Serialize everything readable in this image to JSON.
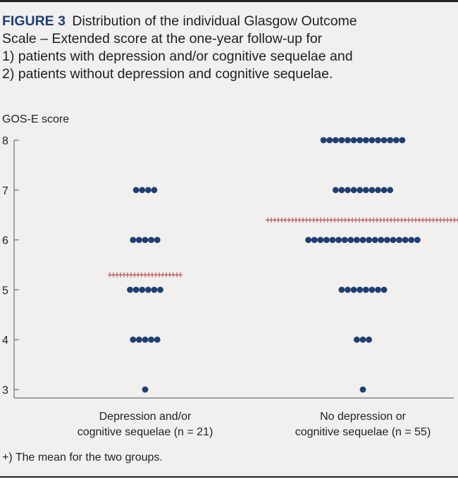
{
  "figure": {
    "label": "FIGURE 3",
    "caption_lines": [
      "Distribution of the individual Glasgow Outcome",
      "Scale – Extended score at the one-year follow-up for",
      "1) patients with depression and/or cognitive sequelae and",
      "2) patients without depression and cognitive sequelae."
    ],
    "footnote": "+) The mean for the two groups."
  },
  "colors": {
    "dot": "#1f3f72",
    "mean": "#b5474c",
    "axis": "#555555"
  },
  "chart_data": {
    "type": "scatter",
    "subtype": "dot-strip-plot",
    "ylabel": "GOS-E score",
    "ylim": [
      3,
      8
    ],
    "yticks": [
      3,
      4,
      5,
      6,
      7,
      8
    ],
    "categories": [
      "Depression and/or cognitive sequelae (n = 21)",
      "No depression or cognitive sequelae (n = 55)"
    ],
    "category_label_lines": [
      [
        "Depression and/or",
        "cognitive sequelae (n = 21)"
      ],
      [
        "No depression or",
        "cognitive sequelae (n = 55)"
      ]
    ],
    "groups": [
      {
        "name": "Depression and/or cognitive sequelae",
        "n": 21,
        "counts": {
          "3": 1,
          "4": 5,
          "5": 6,
          "6": 5,
          "7": 4,
          "8": 0
        },
        "mean": 5.3
      },
      {
        "name": "No depression or cognitive sequelae",
        "n": 55,
        "counts": {
          "3": 1,
          "4": 3,
          "5": 8,
          "6": 19,
          "7": 10,
          "8": 14
        },
        "mean": 6.4
      }
    ],
    "mean_marker": "+",
    "legend": "+) The mean for the two groups."
  }
}
